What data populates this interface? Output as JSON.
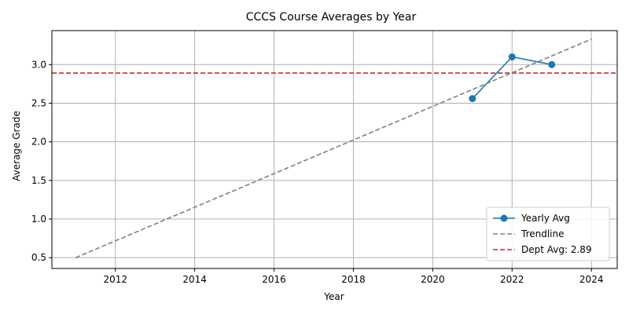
{
  "chart_data": {
    "type": "line",
    "title": "CCCS Course Averages by Year",
    "xlabel": "Year",
    "ylabel": "Average Grade",
    "xlim": [
      2010.4,
      2024.65
    ],
    "ylim": [
      0.36,
      3.44
    ],
    "x_ticks": [
      2012,
      2014,
      2016,
      2018,
      2020,
      2022,
      2024
    ],
    "y_ticks": [
      0.5,
      1.0,
      1.5,
      2.0,
      2.5,
      3.0
    ],
    "x_tick_labels": [
      "2012",
      "2014",
      "2016",
      "2018",
      "2020",
      "2022",
      "2024"
    ],
    "y_tick_labels": [
      "0.5",
      "1.0",
      "1.5",
      "2.0",
      "2.5",
      "3.0"
    ],
    "grid": true,
    "legend_position": "bottom-right",
    "series": [
      {
        "name": "Yearly Avg",
        "style": "solid-with-markers",
        "color": "#1f77b4",
        "x": [
          2021,
          2022,
          2023
        ],
        "y": [
          2.56,
          3.1,
          3.0
        ]
      },
      {
        "name": "Trendline",
        "style": "dashed",
        "color": "#808080",
        "x": [
          2011,
          2024
        ],
        "y": [
          0.5,
          3.33
        ]
      }
    ],
    "reference_lines": [
      {
        "name": "Dept Avg: 2.89",
        "orientation": "horizontal",
        "value": 2.89,
        "style": "dashed",
        "color": "#d62728"
      }
    ]
  }
}
